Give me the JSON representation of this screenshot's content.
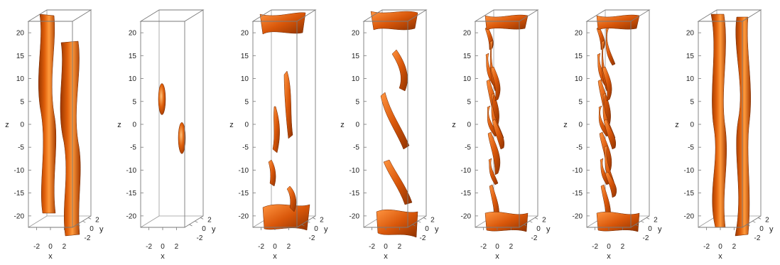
{
  "figure": {
    "surface_color": "#e0600b",
    "surface_dark": "#8a3000",
    "surface_light": "#ffb063",
    "axes": {
      "z_label": "z",
      "x_label": "x",
      "y_label": "y",
      "z_ticks": [
        "20",
        "15",
        "10",
        "5",
        "0",
        "-5",
        "-10",
        "-15",
        "-20"
      ],
      "x_ticks": [
        "-2",
        "0",
        "2"
      ],
      "y_ticks": [
        "2",
        "0",
        "-2"
      ]
    },
    "panels": [
      {
        "id": "panel-1",
        "structure": "two-thick-columns"
      },
      {
        "id": "panel-2",
        "structure": "two-small-blobs"
      },
      {
        "id": "panel-3",
        "structure": "end-caps-and-sparse-sheets"
      },
      {
        "id": "panel-4",
        "structure": "end-caps-and-ribbons"
      },
      {
        "id": "panel-5",
        "structure": "many-thin-sheets"
      },
      {
        "id": "panel-6",
        "structure": "dense-thin-sheets"
      },
      {
        "id": "panel-7",
        "structure": "two-wavy-columns"
      }
    ]
  }
}
